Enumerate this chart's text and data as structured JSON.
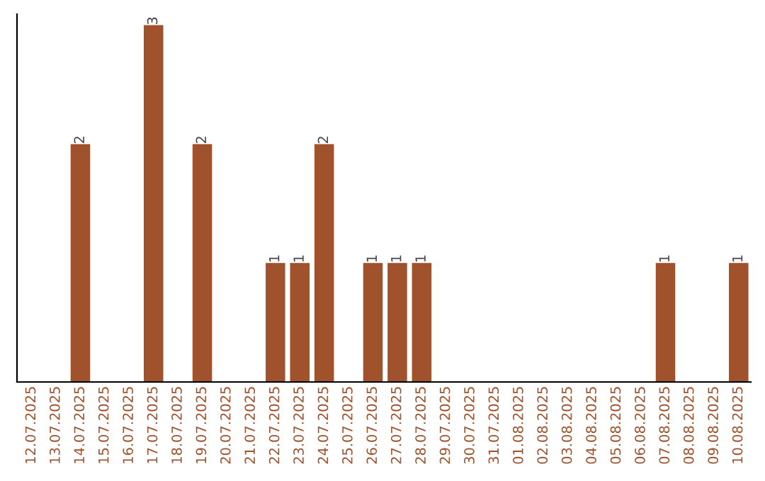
{
  "chart_data": {
    "type": "bar",
    "categories": [
      "12.07.2025",
      "13.07.2025",
      "14.07.2025",
      "15.07.2025",
      "16.07.2025",
      "17.07.2025",
      "18.07.2025",
      "19.07.2025",
      "20.07.2025",
      "21.07.2025",
      "22.07.2025",
      "23.07.2025",
      "24.07.2025",
      "25.07.2025",
      "26.07.2025",
      "27.07.2025",
      "28.07.2025",
      "29.07.2025",
      "30.07.2025",
      "31.07.2025",
      "01.08.2025",
      "02.08.2025",
      "03.08.2025",
      "04.08.2025",
      "05.08.2025",
      "06.08.2025",
      "07.08.2025",
      "08.08.2025",
      "09.08.2025",
      "10.08.2025"
    ],
    "values": [
      0,
      0,
      2,
      0,
      0,
      3,
      0,
      2,
      0,
      0,
      1,
      1,
      2,
      0,
      1,
      1,
      1,
      0,
      0,
      0,
      0,
      0,
      0,
      0,
      0,
      0,
      1,
      0,
      0,
      1
    ],
    "value_labels": [
      null,
      null,
      "2",
      null,
      null,
      "3",
      null,
      "2",
      null,
      null,
      "1",
      "1",
      "2",
      null,
      "1",
      "1",
      "1",
      null,
      null,
      null,
      null,
      null,
      null,
      null,
      null,
      null,
      "1",
      null,
      null,
      "1"
    ],
    "color": "#a0522d",
    "grid": false,
    "legend": false
  }
}
